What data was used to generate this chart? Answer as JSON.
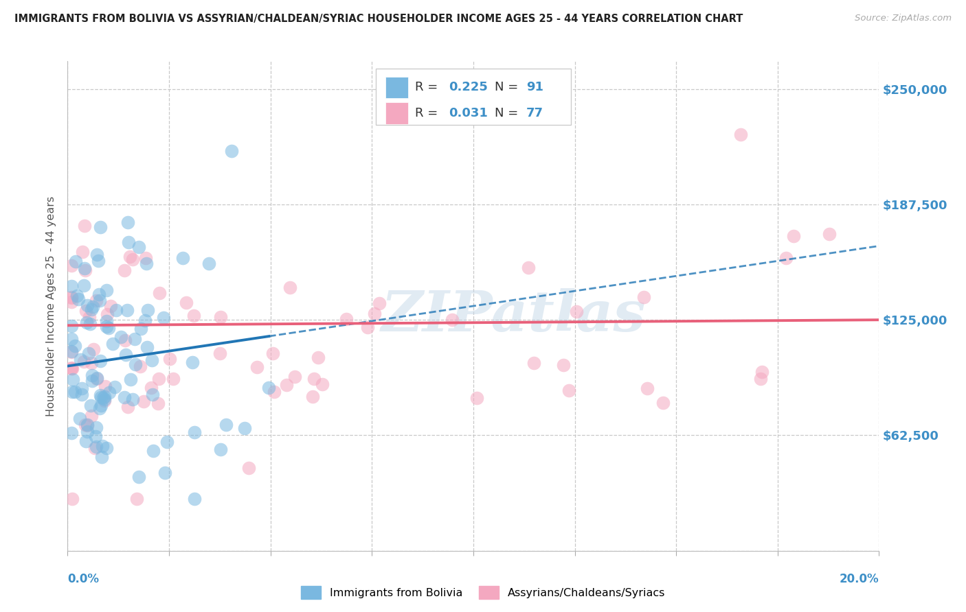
{
  "title": "IMMIGRANTS FROM BOLIVIA VS ASSYRIAN/CHALDEAN/SYRIAC HOUSEHOLDER INCOME AGES 25 - 44 YEARS CORRELATION CHART",
  "source": "Source: ZipAtlas.com",
  "ylabel": "Householder Income Ages 25 - 44 years",
  "y_ticks": [
    0,
    62500,
    125000,
    187500,
    250000
  ],
  "y_tick_labels": [
    "",
    "$62,500",
    "$125,000",
    "$187,500",
    "$250,000"
  ],
  "x_min": 0.0,
  "x_max": 0.2,
  "y_min": 0,
  "y_max": 265000,
  "blue_scatter_color": "#7ab8e0",
  "pink_scatter_color": "#f4a8c0",
  "blue_line_color": "#2176b5",
  "pink_line_color": "#e8607a",
  "tick_color": "#3d8fc7",
  "legend_label_blue": "Immigrants from Bolivia",
  "legend_label_pink": "Assyrians/Chaldeans/Syriacs",
  "watermark": "ZIPatlas",
  "R_blue": 0.225,
  "N_blue": 91,
  "R_pink": 0.031,
  "N_pink": 77,
  "grid_color": "#c8c8c8",
  "bg_color": "#ffffff",
  "title_color": "#222222",
  "source_color": "#aaaaaa",
  "blue_intercept": 100000,
  "blue_slope": 330000,
  "pink_intercept": 120000,
  "pink_slope": 30000
}
